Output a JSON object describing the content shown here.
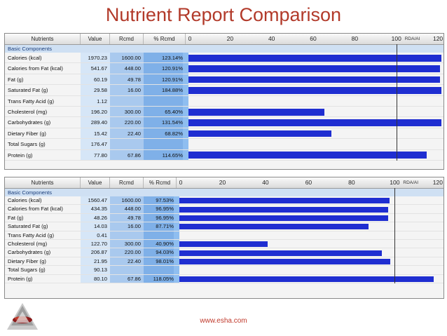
{
  "title": "Nutrient Report Comparison",
  "footer_url": "www.esha.com",
  "colors": {
    "title": "#b23a2a",
    "bar": "#1f2ed1",
    "value_col": "#d6e6f7",
    "rcmd_col": "#a9c9ee",
    "pct_col": "#7fb0e8",
    "axis_bg": "#8fbef0"
  },
  "columns": {
    "nutrients": "Nutrients",
    "value": "Value",
    "rcmd": "Rcmd",
    "pct": "% Rcmd"
  },
  "axis": {
    "ticks": [
      "0",
      "20",
      "40",
      "60",
      "80",
      "100",
      "120"
    ],
    "rda_label": "RDA/AI",
    "max": 122
  },
  "reports": [
    {
      "section": "Basic Components",
      "rows": [
        {
          "name": "Calories (kcal)",
          "value": "1970.23",
          "rcmd": "1600.00",
          "pct": "123.14%",
          "bar": 123.14
        },
        {
          "name": "Calories from Fat (kcal)",
          "value": "541.67",
          "rcmd": "448.00",
          "pct": "120.91%",
          "bar": 120.91
        },
        {
          "name": "Fat (g)",
          "value": "60.19",
          "rcmd": "49.78",
          "pct": "120.91%",
          "bar": 120.91
        },
        {
          "name": "Saturated Fat (g)",
          "value": "29.58",
          "rcmd": "16.00",
          "pct": "184.88%",
          "bar": 184.88
        },
        {
          "name": "Trans Fatty Acid (g)",
          "value": "1.12",
          "rcmd": "",
          "pct": "",
          "bar": 0
        },
        {
          "name": "Cholesterol (mg)",
          "value": "196.20",
          "rcmd": "300.00",
          "pct": "65.40%",
          "bar": 65.4
        },
        {
          "name": "Carbohydrates (g)",
          "value": "289.40",
          "rcmd": "220.00",
          "pct": "131.54%",
          "bar": 131.54
        },
        {
          "name": "Dietary Fiber (g)",
          "value": "15.42",
          "rcmd": "22.40",
          "pct": "68.82%",
          "bar": 68.82
        },
        {
          "name": "Total Sugars (g)",
          "value": "176.47",
          "rcmd": "",
          "pct": "",
          "bar": 0
        },
        {
          "name": "Protein (g)",
          "value": "77.80",
          "rcmd": "67.86",
          "pct": "114.65%",
          "bar": 114.65
        }
      ]
    },
    {
      "section": "Basic Components",
      "rows": [
        {
          "name": "Calories (kcal)",
          "value": "1560.47",
          "rcmd": "1600.00",
          "pct": "97.53%",
          "bar": 97.53
        },
        {
          "name": "Calories from Fat (kcal)",
          "value": "434.35",
          "rcmd": "448.00",
          "pct": "96.95%",
          "bar": 96.95
        },
        {
          "name": "Fat (g)",
          "value": "48.26",
          "rcmd": "49.78",
          "pct": "96.95%",
          "bar": 96.95
        },
        {
          "name": "Saturated Fat (g)",
          "value": "14.03",
          "rcmd": "16.00",
          "pct": "87.71%",
          "bar": 87.71
        },
        {
          "name": "Trans Fatty Acid (g)",
          "value": "0.41",
          "rcmd": "",
          "pct": "",
          "bar": 0
        },
        {
          "name": "Cholesterol (mg)",
          "value": "122.70",
          "rcmd": "300.00",
          "pct": "40.90%",
          "bar": 40.9
        },
        {
          "name": "Carbohydrates (g)",
          "value": "206.87",
          "rcmd": "220.00",
          "pct": "94.03%",
          "bar": 94.03
        },
        {
          "name": "Dietary Fiber (g)",
          "value": "21.95",
          "rcmd": "22.40",
          "pct": "98.01%",
          "bar": 98.01
        },
        {
          "name": "Total Sugars (g)",
          "value": "90.13",
          "rcmd": "",
          "pct": "",
          "bar": 0
        },
        {
          "name": "Protein (g)",
          "value": "80.10",
          "rcmd": "67.86",
          "pct": "118.05%",
          "bar": 118.05
        }
      ]
    }
  ]
}
